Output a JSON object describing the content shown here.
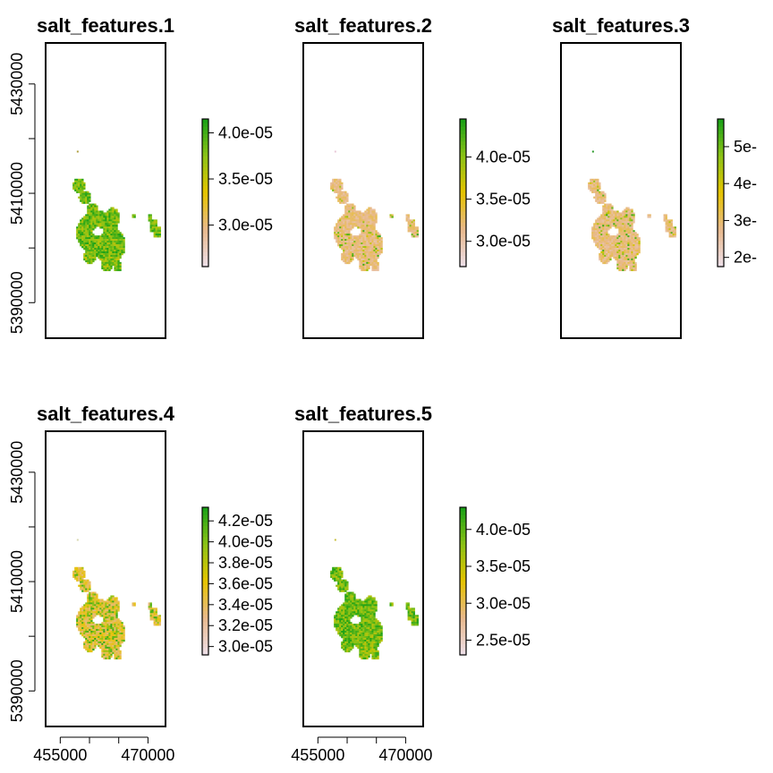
{
  "chart_data": [
    {
      "type": "heatmap",
      "title": "salt_features.1",
      "xlabel": "",
      "ylabel": "",
      "y_ticks": [
        5390000,
        5410000,
        5430000
      ],
      "x_ticks": [],
      "legend_ticks": [
        "4.0e-05",
        "3.5e-05",
        "3.0e-05"
      ],
      "legend_range": [
        2.55e-05,
        4.15e-05
      ],
      "palette": [
        "#ede0ea",
        "#e8b98d",
        "#e6c400",
        "#8cc316",
        "#17a017"
      ],
      "value_pattern": "mostly-high",
      "marker": "#b0a040"
    },
    {
      "type": "heatmap",
      "title": "salt_features.2",
      "xlabel": "",
      "ylabel": "",
      "y_ticks": [],
      "x_ticks": [],
      "legend_ticks": [
        "4.0e-05",
        "3.5e-05",
        "3.0e-05"
      ],
      "legend_range": [
        2.7e-05,
        4.45e-05
      ],
      "palette": [
        "#ede0ea",
        "#e8b98d",
        "#e6c400",
        "#8cc316",
        "#17a017"
      ],
      "value_pattern": "mostly-low",
      "marker": "#e8c8d8"
    },
    {
      "type": "heatmap",
      "title": "salt_features.3",
      "xlabel": "",
      "ylabel": "",
      "y_ticks": [],
      "x_ticks": [],
      "legend_ticks": [
        "5e-",
        "4e-",
        "3e-",
        "2e-"
      ],
      "legend_range": [
        1.75e-05,
        5.75e-05
      ],
      "palette": [
        "#ede0ea",
        "#e8b98d",
        "#e6c400",
        "#8cc316",
        "#17a017"
      ],
      "value_pattern": "mostly-low",
      "marker": "#2a9a2a"
    },
    {
      "type": "heatmap",
      "title": "salt_features.4",
      "xlabel": "",
      "ylabel": "",
      "y_ticks": [
        5390000,
        5410000,
        5430000
      ],
      "x_ticks": [
        455000,
        470000
      ],
      "legend_ticks": [
        "4.2e-05",
        "4.0e-05",
        "3.8e-05",
        "3.6e-05",
        "3.4e-05",
        "3.2e-05",
        "3.0e-05"
      ],
      "legend_range": [
        2.92e-05,
        4.33e-05
      ],
      "palette": [
        "#ede0ea",
        "#e8b98d",
        "#e6c400",
        "#8cc316",
        "#17a017"
      ],
      "value_pattern": "mixed",
      "marker": "#d8d8b0"
    },
    {
      "type": "heatmap",
      "title": "salt_features.5",
      "xlabel": "",
      "ylabel": "",
      "y_ticks": [],
      "x_ticks": [
        455000,
        470000
      ],
      "legend_ticks": [
        "4.0e-05",
        "3.5e-05",
        "3.0e-05",
        "2.5e-05"
      ],
      "legend_range": [
        2.3e-05,
        4.3e-05
      ],
      "palette": [
        "#ede0ea",
        "#e8b98d",
        "#e6c400",
        "#8cc316",
        "#17a017"
      ],
      "value_pattern": "mostly-high",
      "marker": "#c8c040"
    }
  ]
}
